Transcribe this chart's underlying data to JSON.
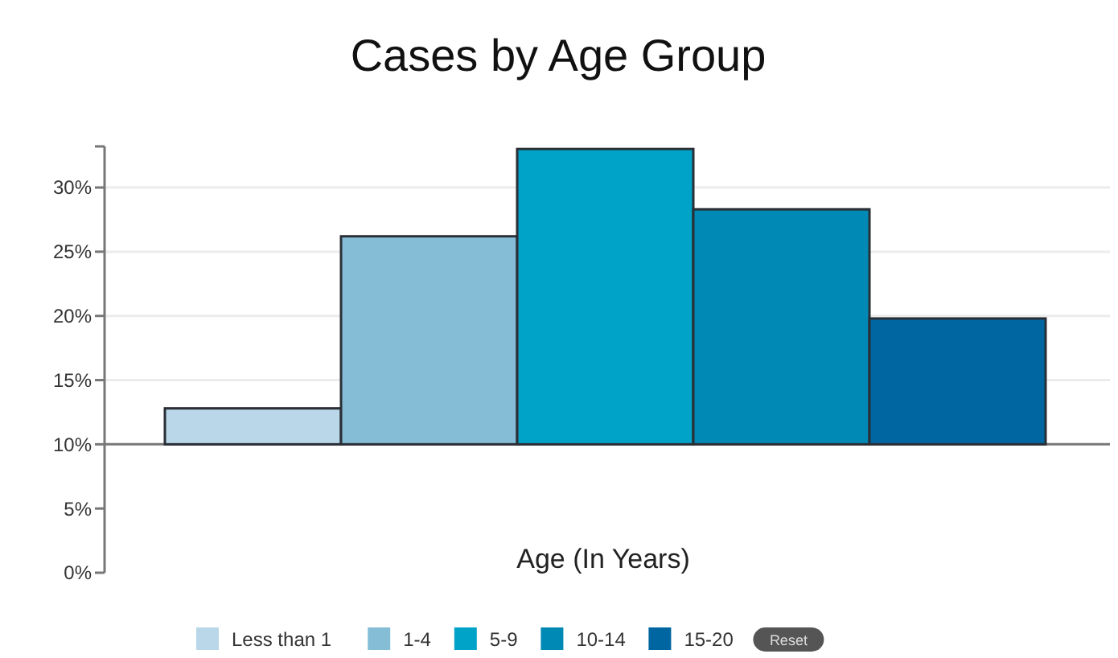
{
  "chart_data": {
    "type": "bar",
    "title": "Cases by Age Group",
    "xlabel": "Age (In Years)",
    "categories": [
      null
    ],
    "series": [
      {
        "name": "Less than 1",
        "color": "#b9d7e8",
        "values": [
          2.8
        ],
        "base": [
          10
        ]
      },
      {
        "name": "1-4",
        "color": "#86bdd6",
        "values": [
          16.2
        ],
        "base": [
          10
        ]
      },
      {
        "name": "5-9",
        "color": "#00a3c8",
        "values": [
          23
        ],
        "base": [
          10
        ]
      },
      {
        "name": "10-14",
        "color": "#0089b5",
        "values": [
          18.3
        ],
        "base": [
          10
        ]
      },
      {
        "name": "15-20",
        "color": "#0066a1",
        "values": [
          9.8
        ],
        "base": [
          10
        ]
      }
    ],
    "ylim": [
      0,
      33.2
    ],
    "yticks": [
      {
        "value": 0,
        "label": "0%"
      },
      {
        "value": 5,
        "label": "5%"
      },
      {
        "value": 10,
        "label": "10%"
      },
      {
        "value": 15,
        "label": "15%"
      },
      {
        "value": 20,
        "label": "20%"
      },
      {
        "value": 25,
        "label": "25%"
      },
      {
        "value": 30,
        "label": "30%"
      }
    ],
    "ref_lines": [
      {
        "axis": "y",
        "value": 10,
        "color": "#777777"
      }
    ],
    "grid": "y",
    "legend": "bottom",
    "tick_labels": "y",
    "annotations": [
      "Reset"
    ]
  }
}
